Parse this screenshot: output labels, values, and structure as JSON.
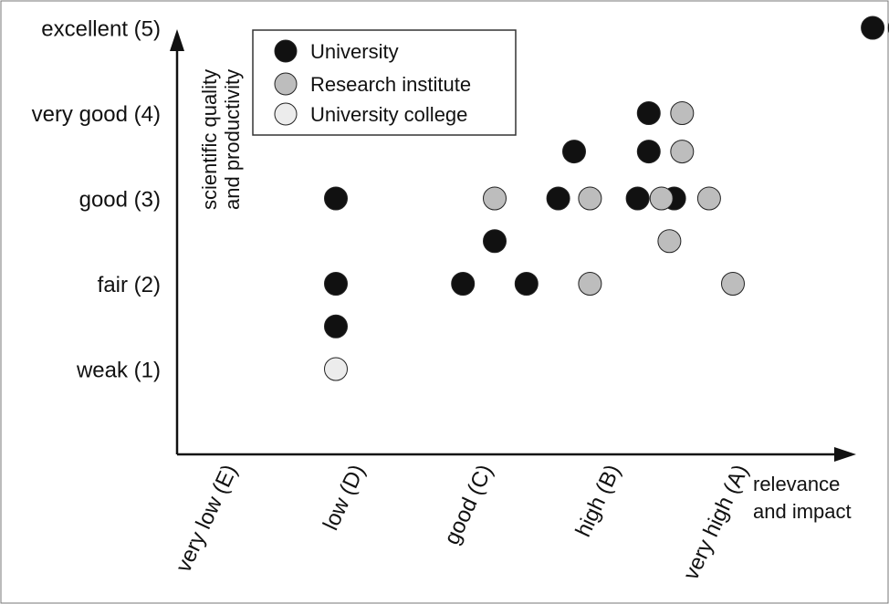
{
  "chart_data": {
    "type": "scatter",
    "xlabel": [
      "relevance",
      "and impact"
    ],
    "ylabel": [
      "scientific quality",
      "and productivity"
    ],
    "x_categories": [
      "very low (E)",
      "low (D)",
      "good (C)",
      "high (B)",
      "very high (A)"
    ],
    "y_categories": [
      "weak (1)",
      "fair (2)",
      "good (3)",
      "very good (4)",
      "excellent (5)"
    ],
    "xlim": [
      0,
      5.6
    ],
    "ylim": [
      0,
      5.9
    ],
    "legend_position": "top-left",
    "colors": {
      "University": "#111111",
      "Research institute": "#bdbdbd",
      "University college": "#ececec"
    },
    "series": [
      {
        "name": "University",
        "points": [
          {
            "x": 4.38,
            "y": 5.0
          },
          {
            "x": 4.55,
            "y": 5.0
          },
          {
            "x": 2.0,
            "y": 4.0
          },
          {
            "x": 2.97,
            "y": 4.0
          },
          {
            "x": 2.5,
            "y": 3.55
          },
          {
            "x": 2.97,
            "y": 3.55
          },
          {
            "x": 1.0,
            "y": 3.0
          },
          {
            "x": 2.4,
            "y": 3.0
          },
          {
            "x": 2.9,
            "y": 3.0
          },
          {
            "x": 3.13,
            "y": 3.0
          },
          {
            "x": 2.0,
            "y": 2.5
          },
          {
            "x": 1.0,
            "y": 2.0
          },
          {
            "x": 1.8,
            "y": 2.0
          },
          {
            "x": 2.2,
            "y": 2.0
          },
          {
            "x": 1.0,
            "y": 1.5
          }
        ]
      },
      {
        "name": "Research institute",
        "points": [
          {
            "x": 3.18,
            "y": 4.0
          },
          {
            "x": 3.18,
            "y": 3.55
          },
          {
            "x": 2.0,
            "y": 3.0
          },
          {
            "x": 2.6,
            "y": 3.0
          },
          {
            "x": 3.05,
            "y": 3.0
          },
          {
            "x": 3.35,
            "y": 3.0
          },
          {
            "x": 3.1,
            "y": 2.5
          },
          {
            "x": 2.6,
            "y": 2.0
          },
          {
            "x": 3.5,
            "y": 2.0
          }
        ]
      },
      {
        "name": "University college",
        "points": [
          {
            "x": 1.0,
            "y": 1.0
          }
        ]
      }
    ]
  }
}
